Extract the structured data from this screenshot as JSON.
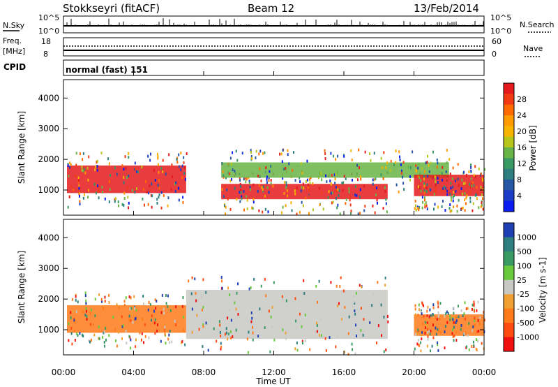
{
  "header": {
    "station": "Stokkseyri (fitACF)",
    "beam": "Beam 12",
    "date": "13/Feb/2014"
  },
  "noise_panel": {
    "left_label": "N.Sky",
    "left_ticks": [
      "10^5",
      "10^0"
    ],
    "right_label": "N.Search",
    "right_ticks": [
      "10^5",
      "10^0"
    ]
  },
  "freq_panel": {
    "left_label_1": "Freq.",
    "left_label_2": "[MHz]",
    "left_ticks": [
      "18",
      "8"
    ],
    "right_label": "Nave",
    "right_ticks": [
      "60",
      "0"
    ]
  },
  "cpid_panel": {
    "label": "CPID",
    "value": "normal (fast) 151"
  },
  "colors": {
    "ground_scatter": "#c8c8c4",
    "frame": "#000000"
  },
  "chart_data": [
    {
      "type": "heatmap",
      "panel": "power",
      "title": "",
      "xlabel": "Time UT",
      "ylabel": "Slant Range [km]",
      "colorbar_label": "Power [dB]",
      "xlim": [
        0,
        24
      ],
      "ylim": [
        180,
        4600
      ],
      "x_ticks": [
        "00:00",
        "04:00",
        "08:00",
        "12:00",
        "16:00",
        "20:00",
        "00:00"
      ],
      "y_ticks": [
        1000,
        2000,
        3000,
        4000
      ],
      "colorbar": {
        "ticks": [
          28,
          24,
          20,
          16,
          12,
          8,
          4
        ],
        "colors": [
          "#e41a1c",
          "#f23a13",
          "#ff6a00",
          "#ff9a00",
          "#f6b400",
          "#b6c51a",
          "#69b447",
          "#3a9a63",
          "#2e7e80",
          "#2557a5",
          "#1a3cc6",
          "#0a1cf0"
        ]
      },
      "features": [
        {
          "time_range": [
            0.2,
            7.0
          ],
          "range_km": [
            900,
            1800
          ],
          "description_color": "#e41a1c"
        },
        {
          "time_range": [
            9.0,
            18.5
          ],
          "range_km": [
            700,
            1200
          ],
          "description_color": "#e41a1c"
        },
        {
          "time_range": [
            9.0,
            22.0
          ],
          "range_km": [
            1400,
            1900
          ],
          "description_color": "#69b447"
        },
        {
          "time_range": [
            20.0,
            24.0
          ],
          "range_km": [
            800,
            1500
          ],
          "description_color": "#e41a1c"
        }
      ]
    },
    {
      "type": "heatmap",
      "panel": "velocity",
      "title": "",
      "xlabel": "Time UT",
      "ylabel": "Slant Range [km]",
      "colorbar_label": "Velocity [m s-1]",
      "xlim": [
        0,
        24
      ],
      "ylim": [
        180,
        4600
      ],
      "x_ticks": [
        "00:00",
        "04:00",
        "08:00",
        "12:00",
        "16:00",
        "20:00",
        "00:00"
      ],
      "y_ticks": [
        1000,
        2000,
        3000,
        4000
      ],
      "colorbar": {
        "ticks": [
          1000,
          500,
          100,
          25,
          -25,
          -100,
          -500,
          -1000
        ],
        "colors": [
          "#1f3fb4",
          "#2e7e80",
          "#3a9a63",
          "#69c93d",
          "#c8c8c4",
          "#f0a030",
          "#ff7a1a",
          "#ff4a10",
          "#f01010"
        ]
      },
      "features": [
        {
          "time_range": [
            0.2,
            7.0
          ],
          "range_km": [
            900,
            1800
          ],
          "description_color": "#ff7a1a"
        },
        {
          "time_range": [
            7.0,
            18.5
          ],
          "range_km": [
            700,
            2300
          ],
          "description_color": "#c8c8c4"
        },
        {
          "time_range": [
            20.0,
            24.0
          ],
          "range_km": [
            800,
            1500
          ],
          "description_color": "#ff7a1a"
        }
      ]
    }
  ]
}
